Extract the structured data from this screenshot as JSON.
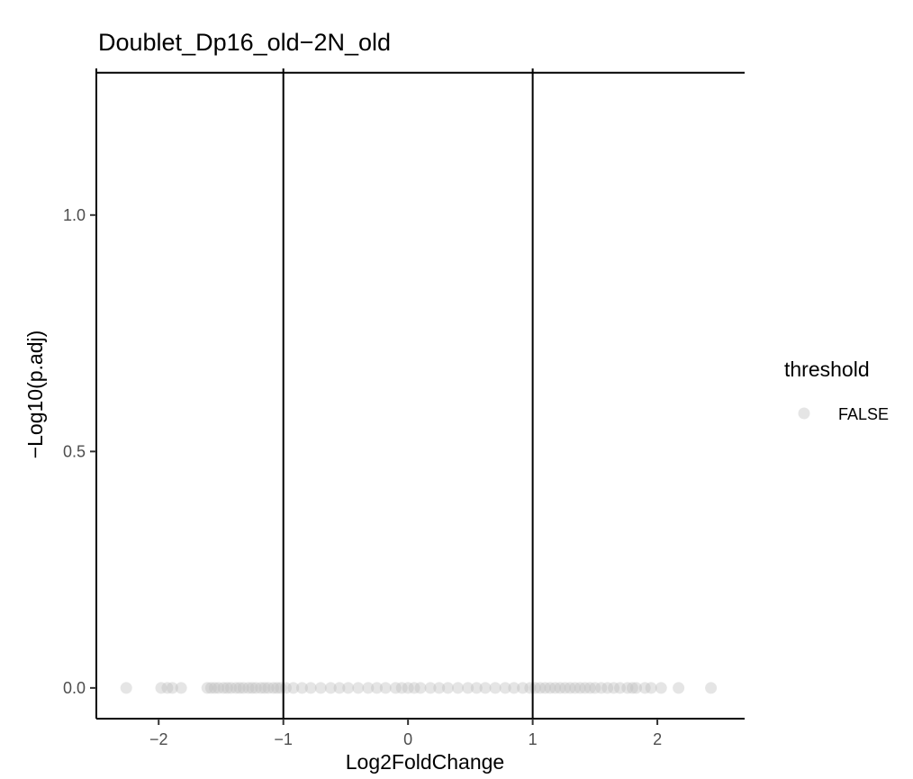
{
  "chart_data": {
    "type": "scatter",
    "title": "Doublet_Dp16_old−2N_old",
    "xlabel": "Log2FoldChange",
    "ylabel": "−Log10(p.adj)",
    "xlim": [
      -2.5,
      2.7
    ],
    "ylim": [
      -0.065,
      1.31
    ],
    "xticks": [
      -2,
      -1,
      0,
      1,
      2
    ],
    "xtick_labels": [
      "−2",
      "−1",
      "0",
      "1",
      "2"
    ],
    "yticks": [
      0.0,
      0.5,
      1.0
    ],
    "ytick_labels": [
      "0.0",
      "0.5",
      "1.0"
    ],
    "reference_lines": {
      "vertical": [
        -1,
        1
      ],
      "horizontal": [
        1.30103
      ]
    },
    "legend": {
      "title": "threshold",
      "position": "right",
      "entries": [
        {
          "label": "FALSE",
          "color": "#bebebe"
        }
      ]
    },
    "series": [
      {
        "name": "FALSE",
        "color": "#bebebe",
        "x": [
          -2.26,
          -1.98,
          -1.93,
          -1.89,
          -1.82,
          -1.61,
          -1.58,
          -1.55,
          -1.52,
          -1.48,
          -1.45,
          -1.42,
          -1.38,
          -1.35,
          -1.32,
          -1.28,
          -1.25,
          -1.22,
          -1.18,
          -1.15,
          -1.12,
          -1.08,
          -1.05,
          -1.02,
          -0.98,
          -0.92,
          -0.85,
          -0.78,
          -0.7,
          -0.62,
          -0.55,
          -0.48,
          -0.4,
          -0.32,
          -0.25,
          -0.18,
          -0.1,
          -0.05,
          0.0,
          0.05,
          0.1,
          0.18,
          0.25,
          0.32,
          0.4,
          0.48,
          0.55,
          0.62,
          0.7,
          0.78,
          0.85,
          0.92,
          0.98,
          1.02,
          1.06,
          1.1,
          1.14,
          1.18,
          1.22,
          1.26,
          1.3,
          1.34,
          1.38,
          1.42,
          1.46,
          1.5,
          1.55,
          1.6,
          1.65,
          1.7,
          1.76,
          1.8,
          1.83,
          1.9,
          1.95,
          2.03,
          2.17,
          2.43
        ],
        "y": [
          0,
          0,
          0,
          0,
          0,
          0,
          0,
          0,
          0,
          0,
          0,
          0,
          0,
          0,
          0,
          0,
          0,
          0,
          0,
          0,
          0,
          0,
          0,
          0,
          0,
          0,
          0,
          0,
          0,
          0,
          0,
          0,
          0,
          0,
          0,
          0,
          0,
          0,
          0,
          0,
          0,
          0,
          0,
          0,
          0,
          0,
          0,
          0,
          0,
          0,
          0,
          0,
          0,
          0,
          0,
          0,
          0,
          0,
          0,
          0,
          0,
          0,
          0,
          0,
          0,
          0,
          0,
          0,
          0,
          0,
          0,
          0,
          0,
          0,
          0,
          0,
          0,
          0
        ]
      }
    ]
  }
}
